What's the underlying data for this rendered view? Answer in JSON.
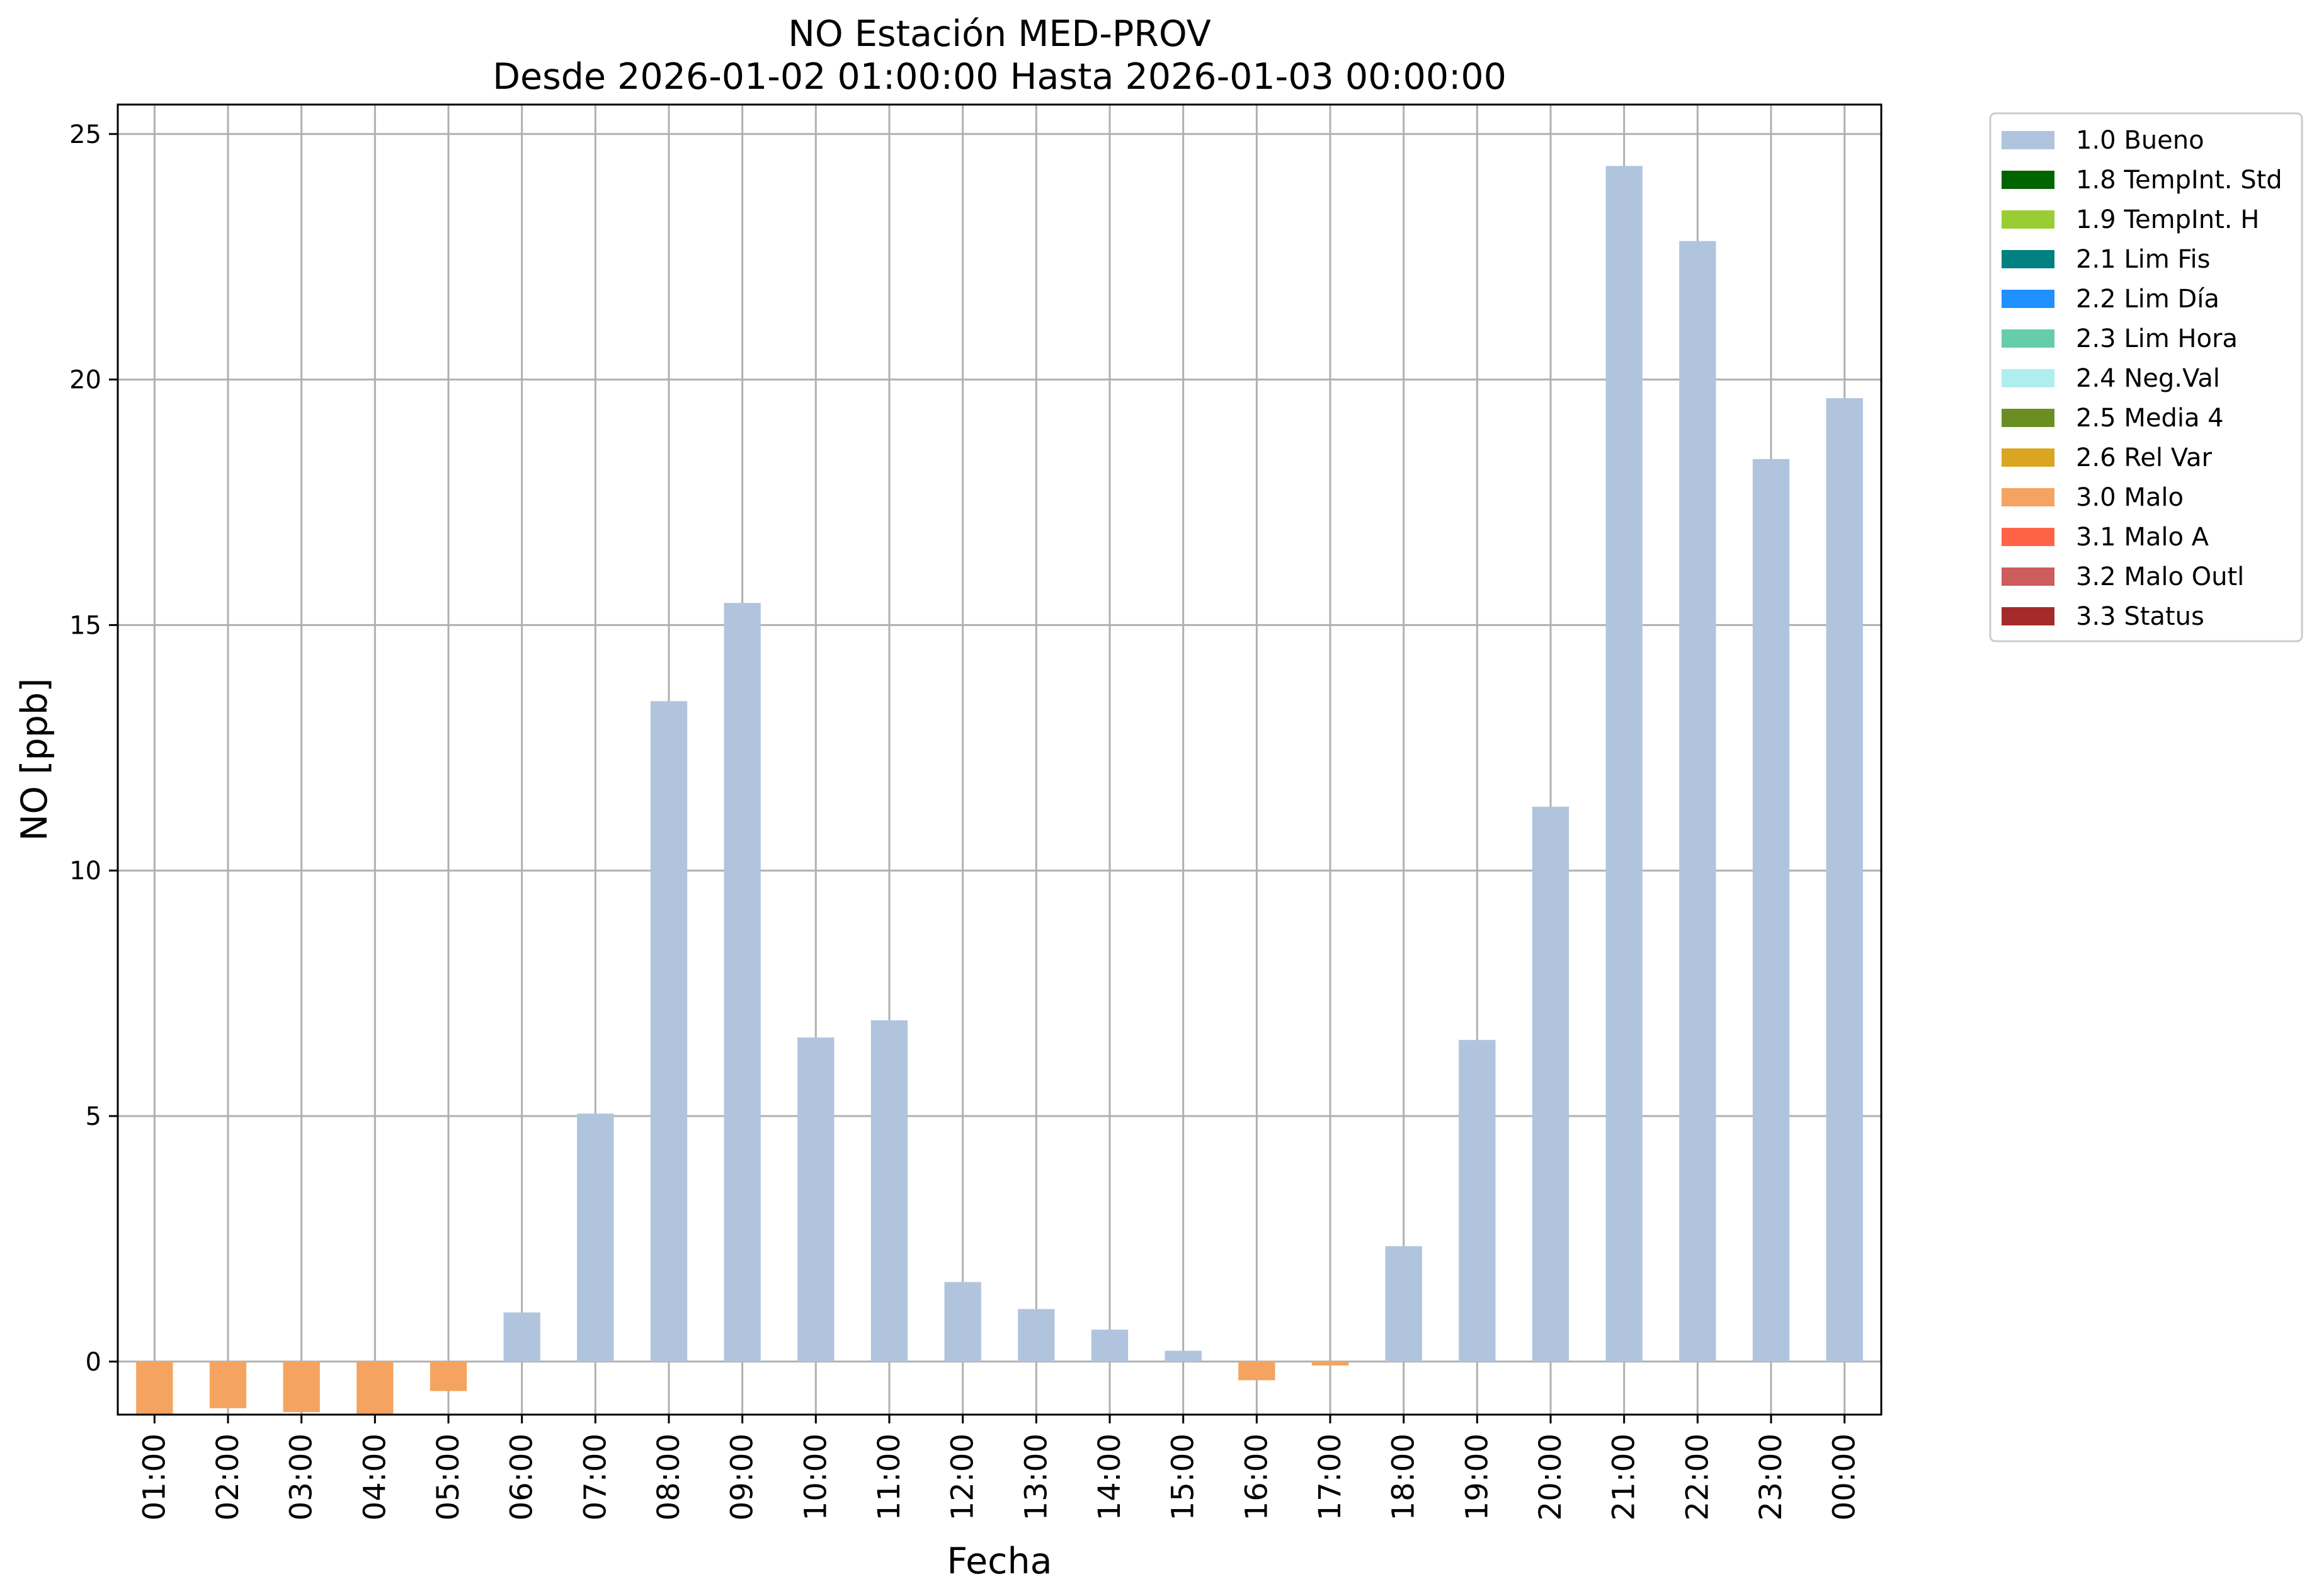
{
  "chart_data": {
    "type": "bar",
    "title": "NO Estación MED-PROV",
    "subtitle": "Desde 2026-01-02 01:00:00 Hasta 2026-01-03 00:00:00",
    "xlabel": "Fecha",
    "ylabel": "NO [ppb]",
    "ylim": [
      -1.08,
      25.6
    ],
    "yticks": [
      0,
      5,
      10,
      15,
      20,
      25
    ],
    "grid": true,
    "legend_position": "outside top-right",
    "categories": [
      "01:00",
      "02:00",
      "03:00",
      "04:00",
      "05:00",
      "06:00",
      "07:00",
      "08:00",
      "09:00",
      "10:00",
      "11:00",
      "12:00",
      "13:00",
      "14:00",
      "15:00",
      "16:00",
      "17:00",
      "18:00",
      "19:00",
      "20:00",
      "21:00",
      "22:00",
      "23:00",
      "00:00"
    ],
    "values": [
      -1.1,
      -0.95,
      -1.03,
      -1.07,
      -0.6,
      1.0,
      5.05,
      13.45,
      15.45,
      6.6,
      6.95,
      1.62,
      1.07,
      0.65,
      0.22,
      -0.38,
      -0.08,
      2.35,
      6.55,
      11.3,
      24.35,
      22.82,
      18.38,
      19.62
    ],
    "flags": [
      "3.0 Malo",
      "3.0 Malo",
      "3.0 Malo",
      "3.0 Malo",
      "3.0 Malo",
      "1.0 Bueno",
      "1.0 Bueno",
      "1.0 Bueno",
      "1.0 Bueno",
      "1.0 Bueno",
      "1.0 Bueno",
      "1.0 Bueno",
      "1.0 Bueno",
      "1.0 Bueno",
      "1.0 Bueno",
      "3.0 Malo",
      "3.0 Malo",
      "1.0 Bueno",
      "1.0 Bueno",
      "1.0 Bueno",
      "1.0 Bueno",
      "1.0 Bueno",
      "1.0 Bueno",
      "1.0 Bueno"
    ],
    "legend": [
      {
        "label": "1.0 Bueno",
        "color": "#b0c4de"
      },
      {
        "label": "1.8 TempInt. Std",
        "color": "#006400"
      },
      {
        "label": "1.9 TempInt. H",
        "color": "#9acd32"
      },
      {
        "label": "2.1 Lim Fis",
        "color": "#008080"
      },
      {
        "label": "2.2 Lim Día",
        "color": "#1e90ff"
      },
      {
        "label": "2.3 Lim Hora",
        "color": "#66cdaa"
      },
      {
        "label": "2.4 Neg.Val",
        "color": "#afeeee"
      },
      {
        "label": "2.5 Media 4",
        "color": "#6b8e23"
      },
      {
        "label": "2.6 Rel Var",
        "color": "#daa520"
      },
      {
        "label": "3.0 Malo",
        "color": "#f4a460"
      },
      {
        "label": "3.1 Malo A",
        "color": "#ff6347"
      },
      {
        "label": "3.2 Malo Outl",
        "color": "#cd5c5c"
      },
      {
        "label": "3.3 Status",
        "color": "#a52a2a"
      }
    ]
  }
}
